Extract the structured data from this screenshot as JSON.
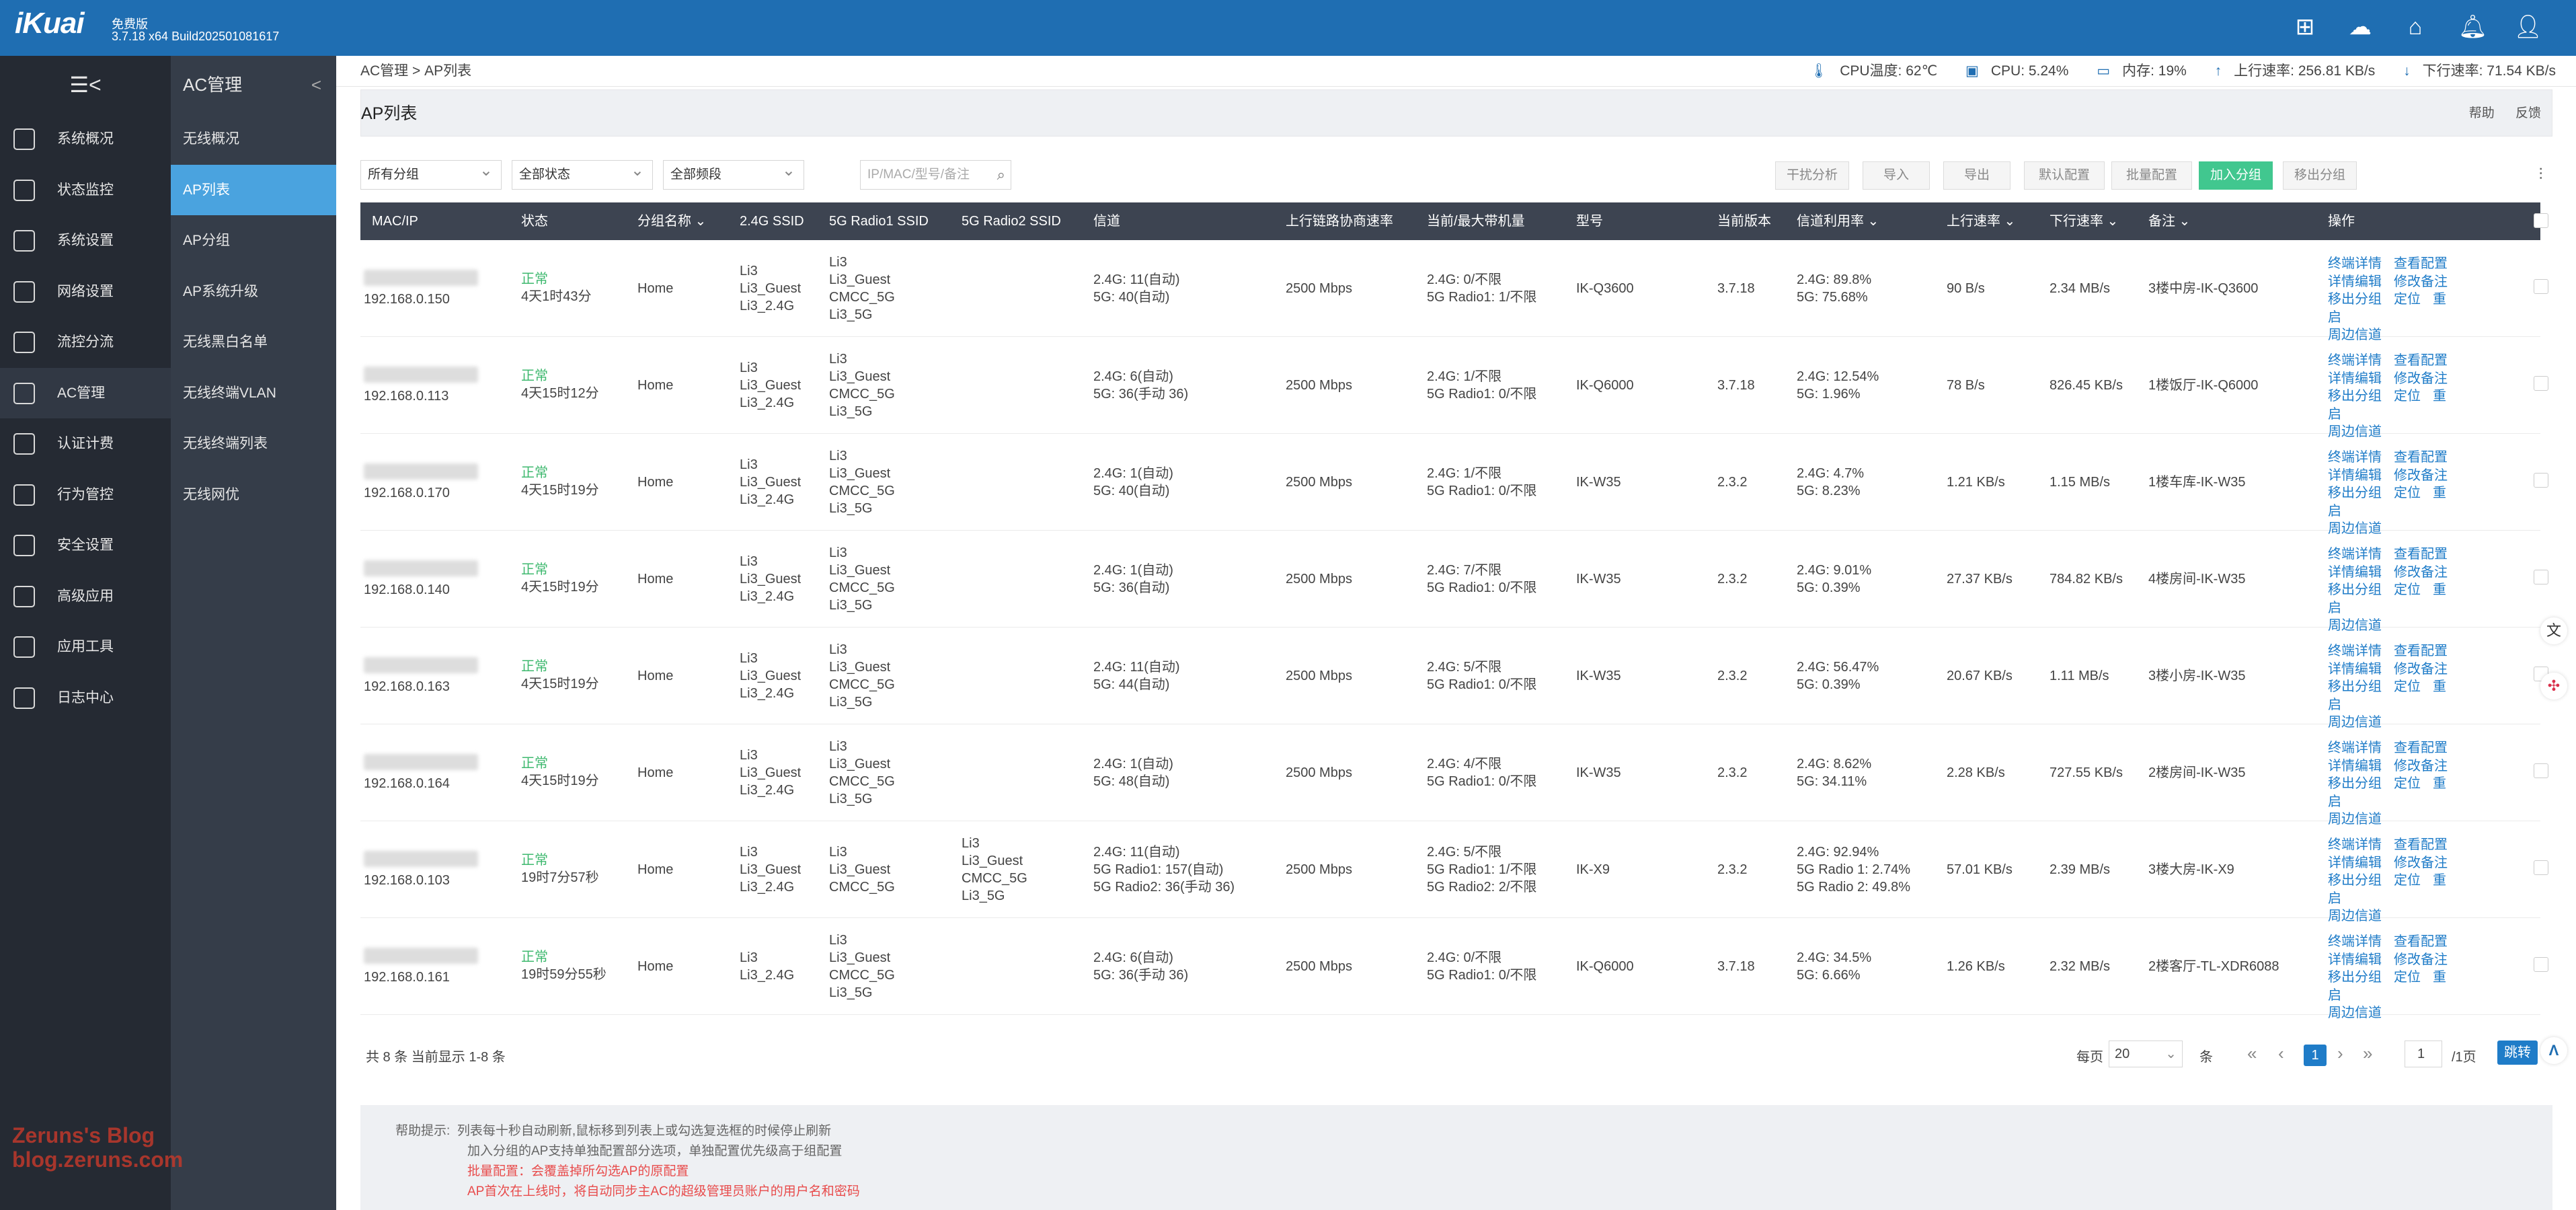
{
  "header": {
    "logo": "iKuai",
    "edition": "免费版",
    "version": "3.7.18 x64 Build202501081617",
    "icons": [
      "grid-icon",
      "cloud-icon",
      "home-icon",
      "bell-icon",
      "user-icon"
    ]
  },
  "sidebar": {
    "collapse_icon": "☰<",
    "items": [
      {
        "label": "系统概况",
        "icon": "dashboard-icon"
      },
      {
        "label": "状态监控",
        "icon": "monitor-icon"
      },
      {
        "label": "系统设置",
        "icon": "gear-icon"
      },
      {
        "label": "网络设置",
        "icon": "network-icon"
      },
      {
        "label": "流控分流",
        "icon": "flow-icon"
      },
      {
        "label": "AC管理",
        "icon": "ac-icon"
      },
      {
        "label": "认证计费",
        "icon": "auth-icon"
      },
      {
        "label": "行为管控",
        "icon": "behavior-icon"
      },
      {
        "label": "安全设置",
        "icon": "security-icon"
      },
      {
        "label": "高级应用",
        "icon": "advanced-icon"
      },
      {
        "label": "应用工具",
        "icon": "tools-icon"
      },
      {
        "label": "日志中心",
        "icon": "log-icon"
      }
    ]
  },
  "subnav": {
    "title": "AC管理",
    "items": [
      "无线概况",
      "AP列表",
      "AP分组",
      "AP系统升级",
      "无线黑白名单",
      "无线终端VLAN",
      "无线终端列表",
      "无线网优"
    ]
  },
  "breadcrumb": "AC管理 > AP列表",
  "stats": {
    "cpu_temp": "CPU温度: 62℃",
    "cpu": "CPU: 5.24%",
    "mem": "内存: 19%",
    "up": "上行速率: 256.81 KB/s",
    "down": "下行速率: 71.54 KB/s"
  },
  "page": {
    "title": "AP列表",
    "help": "帮助",
    "feedback": "反馈"
  },
  "filters": {
    "group": "所有分组",
    "status": "全部状态",
    "band": "全部频段",
    "search_placeholder": "IP/MAC/型号/备注"
  },
  "toolbar_buttons": [
    "干扰分析",
    "导入",
    "导出",
    "默认配置",
    "批量配置",
    "加入分组",
    "移出分组"
  ],
  "columns": [
    "MAC/IP",
    "状态",
    "分组名称 ⌄",
    "2.4G SSID",
    "5G Radio1 SSID",
    "5G Radio2 SSID",
    "信道",
    "上行链路协商速率",
    "当前/最大带机量",
    "型号",
    "当前版本",
    "信道利用率 ⌄",
    "上行速率 ⌄",
    "下行速率 ⌄",
    "备注 ⌄",
    "操作"
  ],
  "rows": [
    {
      "ip": "192.168.0.150",
      "status": "正常",
      "uptime": "4天1时43分",
      "group": "Home",
      "ssid24": [
        "Li3",
        "Li3_Guest",
        "Li3_2.4G"
      ],
      "ssid5a": [
        "Li3",
        "Li3_Guest",
        "CMCC_5G",
        "Li3_5G"
      ],
      "ssid5b": [],
      "channel": [
        "2.4G: 11(自动)",
        "5G:  40(自动)"
      ],
      "link": "2500 Mbps",
      "clients": [
        "2.4G: 0/不限",
        "5G Radio1: 1/不限"
      ],
      "model": "IK-Q3600",
      "ver": "3.7.18",
      "util": [
        "2.4G: 89.8%",
        "5G: 75.68%"
      ],
      "up": "90 B/s",
      "down": "2.34 MB/s",
      "note": "3楼中房-IK-Q3600"
    },
    {
      "ip": "192.168.0.113",
      "status": "正常",
      "uptime": "4天15时12分",
      "group": "Home",
      "ssid24": [
        "Li3",
        "Li3_Guest",
        "Li3_2.4G"
      ],
      "ssid5a": [
        "Li3",
        "Li3_Guest",
        "CMCC_5G",
        "Li3_5G"
      ],
      "ssid5b": [],
      "channel": [
        "2.4G: 6(自动)",
        "5G:  36(手动 36)"
      ],
      "link": "2500 Mbps",
      "clients": [
        "2.4G: 1/不限",
        "5G Radio1: 0/不限"
      ],
      "model": "IK-Q6000",
      "ver": "3.7.18",
      "util": [
        "2.4G: 12.54%",
        "5G: 1.96%"
      ],
      "up": "78 B/s",
      "down": "826.45 KB/s",
      "note": "1楼饭厅-IK-Q6000"
    },
    {
      "ip": "192.168.0.170",
      "status": "正常",
      "uptime": "4天15时19分",
      "group": "Home",
      "ssid24": [
        "Li3",
        "Li3_Guest",
        "Li3_2.4G"
      ],
      "ssid5a": [
        "Li3",
        "Li3_Guest",
        "CMCC_5G",
        "Li3_5G"
      ],
      "ssid5b": [],
      "channel": [
        "2.4G: 1(自动)",
        "5G:  40(自动)"
      ],
      "link": "2500 Mbps",
      "clients": [
        "2.4G: 1/不限",
        "5G Radio1: 0/不限"
      ],
      "model": "IK-W35",
      "ver": "2.3.2",
      "util": [
        "2.4G: 4.7%",
        "5G: 8.23%"
      ],
      "up": "1.21 KB/s",
      "down": "1.15 MB/s",
      "note": "1楼车库-IK-W35"
    },
    {
      "ip": "192.168.0.140",
      "status": "正常",
      "uptime": "4天15时19分",
      "group": "Home",
      "ssid24": [
        "Li3",
        "Li3_Guest",
        "Li3_2.4G"
      ],
      "ssid5a": [
        "Li3",
        "Li3_Guest",
        "CMCC_5G",
        "Li3_5G"
      ],
      "ssid5b": [],
      "channel": [
        "2.4G: 1(自动)",
        "5G:  36(自动)"
      ],
      "link": "2500 Mbps",
      "clients": [
        "2.4G: 7/不限",
        "5G Radio1: 0/不限"
      ],
      "model": "IK-W35",
      "ver": "2.3.2",
      "util": [
        "2.4G: 9.01%",
        "5G: 0.39%"
      ],
      "up": "27.37 KB/s",
      "down": "784.82 KB/s",
      "note": "4楼房间-IK-W35"
    },
    {
      "ip": "192.168.0.163",
      "status": "正常",
      "uptime": "4天15时19分",
      "group": "Home",
      "ssid24": [
        "Li3",
        "Li3_Guest",
        "Li3_2.4G"
      ],
      "ssid5a": [
        "Li3",
        "Li3_Guest",
        "CMCC_5G",
        "Li3_5G"
      ],
      "ssid5b": [],
      "channel": [
        "2.4G: 11(自动)",
        "5G:  44(自动)"
      ],
      "link": "2500 Mbps",
      "clients": [
        "2.4G: 5/不限",
        "5G Radio1: 0/不限"
      ],
      "model": "IK-W35",
      "ver": "2.3.2",
      "util": [
        "2.4G: 56.47%",
        "5G: 0.39%"
      ],
      "up": "20.67 KB/s",
      "down": "1.11 MB/s",
      "note": "3楼小房-IK-W35"
    },
    {
      "ip": "192.168.0.164",
      "status": "正常",
      "uptime": "4天15时19分",
      "group": "Home",
      "ssid24": [
        "Li3",
        "Li3_Guest",
        "Li3_2.4G"
      ],
      "ssid5a": [
        "Li3",
        "Li3_Guest",
        "CMCC_5G",
        "Li3_5G"
      ],
      "ssid5b": [],
      "channel": [
        "2.4G: 1(自动)",
        "5G:  48(自动)"
      ],
      "link": "2500 Mbps",
      "clients": [
        "2.4G: 4/不限",
        "5G Radio1: 0/不限"
      ],
      "model": "IK-W35",
      "ver": "2.3.2",
      "util": [
        "2.4G: 8.62%",
        "5G: 34.11%"
      ],
      "up": "2.28 KB/s",
      "down": "727.55 KB/s",
      "note": "2楼房间-IK-W35"
    },
    {
      "ip": "192.168.0.103",
      "status": "正常",
      "uptime": "19时7分57秒",
      "group": "Home",
      "ssid24": [
        "Li3",
        "Li3_Guest",
        "Li3_2.4G"
      ],
      "ssid5a": [
        "Li3",
        "Li3_Guest",
        "CMCC_5G"
      ],
      "ssid5b": [
        "Li3",
        "Li3_Guest",
        "CMCC_5G",
        "Li3_5G"
      ],
      "channel": [
        "2.4G: 11(自动)",
        "5G Radio1:  157(自动)",
        "5G Radio2:  36(手动 36)"
      ],
      "link": "2500 Mbps",
      "clients": [
        "2.4G: 5/不限",
        "5G Radio1: 1/不限",
        "5G Radio2: 2/不限"
      ],
      "model": "IK-X9",
      "ver": "2.3.2",
      "util": [
        "2.4G: 92.94%",
        "5G Radio 1: 2.74%",
        "5G Radio 2: 49.8%"
      ],
      "up": "57.01 KB/s",
      "down": "2.39 MB/s",
      "note": "3楼大房-IK-X9"
    },
    {
      "ip": "192.168.0.161",
      "status": "正常",
      "uptime": "19时59分55秒",
      "group": "Home",
      "ssid24": [
        "Li3",
        "Li3_2.4G"
      ],
      "ssid5a": [
        "Li3",
        "Li3_Guest",
        "CMCC_5G",
        "Li3_5G"
      ],
      "ssid5b": [],
      "channel": [
        "2.4G: 6(自动)",
        "5G:  36(手动 36)"
      ],
      "link": "2500 Mbps",
      "clients": [
        "2.4G: 0/不限",
        "5G Radio1: 0/不限"
      ],
      "model": "IK-Q6000",
      "ver": "3.7.18",
      "util": [
        "2.4G: 34.5%",
        "5G: 6.66%"
      ],
      "up": "1.26 KB/s",
      "down": "2.32 MB/s",
      "note": "2楼客厅-TL-XDR6088"
    }
  ],
  "row_ops": [
    [
      "终端详情",
      "查看配置"
    ],
    [
      "详情编辑",
      "修改备注"
    ],
    [
      "移出分组",
      "定位",
      "重启"
    ],
    [
      "周边信道"
    ]
  ],
  "pager": {
    "summary": "共 8 条 当前显示 1-8 条",
    "per_page_label": "每页",
    "per_page": "20",
    "unit": "条",
    "current": "1",
    "goto_value": "1",
    "total_pages": "/1页",
    "jump": "跳转"
  },
  "hint": {
    "label": "帮助提示:",
    "lines": [
      "列表每十秒自动刷新,鼠标移到列表上或勾选复选框的时候停止刷新",
      "加入分组的AP支持单独配置部分选项，单独配置优先级高于组配置"
    ],
    "red_lines": [
      "批量配置：会覆盖掉所勾选AP的原配置",
      "AP首次在上线时，将自动同步主AC的超级管理员账户的用户名和密码"
    ]
  },
  "watermark": [
    "Zeruns's Blog",
    "blog.zeruns.com"
  ]
}
